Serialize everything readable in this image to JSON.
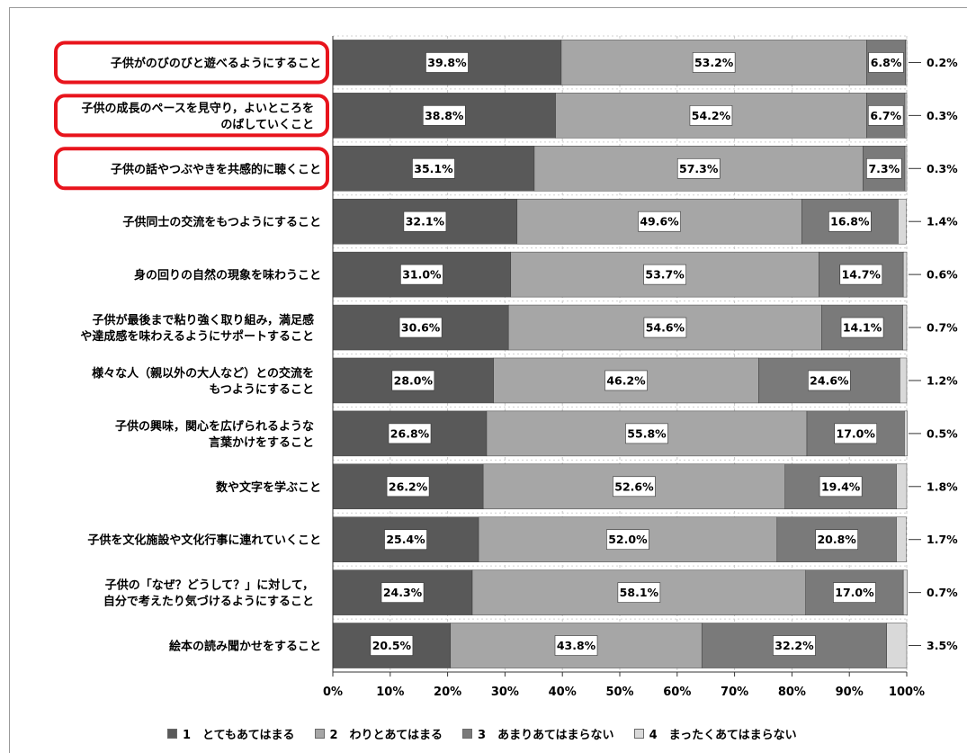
{
  "chart_data": {
    "type": "bar",
    "orientation": "horizontal",
    "stacked": true,
    "categories": [
      "子供がのびのびと遊べるようにすること",
      "子供の成長のペースを見守り，よいところを\nのばしていくこと",
      "子供の話やつぶやきを共感的に聴くこと",
      "子供同士の交流をもつようにすること",
      "身の回りの自然の現象を味わうこと",
      "子供が最後まで粘り強く取り組み，満足感\nや達成感を味わえるようにサポートすること",
      "様々な人（親以外の大人など）との交流を\nもつようにすること",
      "子供の興味，関心を広げられるような\n言葉かけをすること",
      "数や文字を学ぶこと",
      "子供を文化施設や文化行事に連れていくこと",
      "子供の「なぜ？どうして？」に対して，\n自分で考えたり気づけるようにすること",
      "絵本の読み聞かせをすること"
    ],
    "highlighted_categories": [
      0,
      1,
      2
    ],
    "highlight_color": "#e8141c",
    "series": [
      {
        "name": "1　とてもあてはまる",
        "color": "#595959",
        "values": [
          39.8,
          38.8,
          35.1,
          32.1,
          31.0,
          30.6,
          28.0,
          26.8,
          26.2,
          25.4,
          24.3,
          20.5
        ],
        "labels": [
          "39.8%",
          "38.8%",
          "35.1%",
          "32.1%",
          "31.0%",
          "30.6%",
          "28.0%",
          "26.8%",
          "26.2%",
          "25.4%",
          "24.3%",
          "20.5%"
        ]
      },
      {
        "name": "2　わりとあてはまる",
        "color": "#a6a6a6",
        "values": [
          53.2,
          54.2,
          57.3,
          49.6,
          53.7,
          54.6,
          46.2,
          55.8,
          52.6,
          52.0,
          58.1,
          43.8
        ],
        "labels": [
          "53.2%",
          "54.2%",
          "57.3%",
          "49.6%",
          "53.7%",
          "54.6%",
          "46.2%",
          "55.8%",
          "52.6%",
          "52.0%",
          "58.1%",
          "43.8%"
        ]
      },
      {
        "name": "3　あまりあてはまらない",
        "color": "#7a7a7a",
        "values": [
          6.8,
          6.7,
          7.3,
          16.8,
          14.7,
          14.1,
          24.6,
          17.0,
          19.4,
          20.8,
          17.0,
          32.2
        ],
        "labels": [
          "6.8%",
          "6.7%",
          "7.3%",
          "16.8%",
          "14.7%",
          "14.1%",
          "24.6%",
          "17.0%",
          "19.4%",
          "20.8%",
          "17.0%",
          "32.2%"
        ]
      },
      {
        "name": "4　まったくあてはまらない",
        "color": "#d9d9d9",
        "values": [
          0.2,
          0.3,
          0.3,
          1.4,
          0.6,
          0.7,
          1.2,
          0.5,
          1.8,
          1.7,
          0.7,
          3.5
        ],
        "labels": [
          "0.2%",
          "0.3%",
          "0.3%",
          "1.4%",
          "0.6%",
          "0.7%",
          "1.2%",
          "0.5%",
          "1.8%",
          "1.7%",
          "0.7%",
          "3.5%"
        ]
      }
    ],
    "xlim": [
      0,
      100
    ],
    "x_ticks": [
      "0%",
      "10%",
      "20%",
      "30%",
      "40%",
      "50%",
      "60%",
      "70%",
      "80%",
      "90%",
      "100%"
    ],
    "grid": true,
    "legend_position": "bottom"
  }
}
